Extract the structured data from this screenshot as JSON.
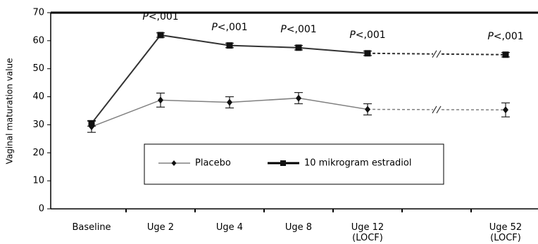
{
  "chart_data": {
    "type": "line",
    "y_label": "Vaginal maturation value",
    "categories": [
      "Baseline",
      "Uge 2",
      "Uge 4",
      "Uge 8",
      "Uge 12 (LOCF)",
      null,
      "Uge 52 (LOCF)"
    ],
    "series": [
      {
        "name": "Placebo",
        "color": "#808080",
        "marker": "diamond",
        "values": [
          29.3,
          38.8,
          38,
          39.5,
          35.5,
          null,
          35.3
        ],
        "errors": [
          2,
          2.5,
          2,
          2,
          2,
          null,
          2.5
        ]
      },
      {
        "name": "10 mikrogram estradiol",
        "color": "#333333",
        "marker": "square",
        "values": [
          30.5,
          62,
          58.3,
          57.5,
          55.5,
          null,
          55
        ],
        "errors": [
          1,
          0.8,
          0.8,
          0.8,
          0.8,
          null,
          0.8
        ]
      }
    ],
    "annotations": [
      null,
      "P<,001",
      "P<,001",
      "P<,001",
      "P<,001",
      null,
      "P<,001"
    ],
    "ylim": [
      0,
      70
    ],
    "yticks": [
      0,
      10,
      20,
      30,
      40,
      50,
      60,
      70
    ],
    "grid": false,
    "legend": "center"
  }
}
